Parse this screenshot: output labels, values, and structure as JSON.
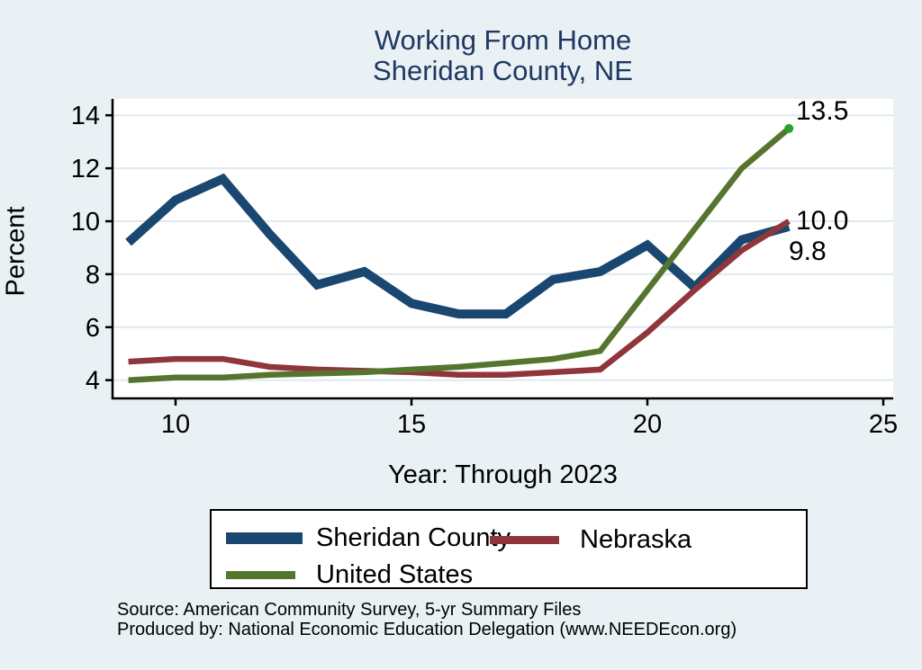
{
  "title": {
    "line1": "Working From Home",
    "line2": "Sheridan County, NE",
    "color": "#1f3863"
  },
  "chart_data": {
    "type": "line",
    "x": [
      9,
      10,
      11,
      12,
      13,
      14,
      15,
      16,
      17,
      18,
      19,
      20,
      21,
      22,
      23
    ],
    "x_note": "years abbreviated (9 = 2009 ... 23 = 2023)",
    "series": [
      {
        "name": "Sheridan County",
        "color": "#1a476f",
        "line_width": 10,
        "values": [
          9.2,
          10.8,
          11.6,
          9.5,
          7.6,
          8.1,
          6.9,
          6.5,
          6.5,
          7.8,
          8.1,
          9.1,
          7.5,
          9.3,
          9.8
        ]
      },
      {
        "name": "Nebraska",
        "color": "#90353b",
        "line_width": 6.5,
        "values": [
          4.7,
          4.8,
          4.8,
          4.5,
          4.4,
          4.35,
          4.3,
          4.2,
          4.2,
          4.3,
          4.4,
          5.8,
          7.4,
          8.9,
          10.0
        ]
      },
      {
        "name": "United States",
        "color": "#55752f",
        "line_width": 6.5,
        "end_marker": true,
        "end_marker_color": "#2ca02c",
        "values": [
          4.0,
          4.1,
          4.1,
          4.2,
          4.25,
          4.3,
          4.4,
          4.5,
          4.65,
          4.8,
          5.1,
          7.4,
          9.7,
          12.0,
          13.5
        ]
      }
    ],
    "xlabel": "Year: Through 2023",
    "ylabel": "Percent",
    "xticks": [
      10,
      15,
      20,
      25
    ],
    "xtick_labels": [
      "10",
      "15",
      "20",
      "25"
    ],
    "yticks": [
      4,
      6,
      8,
      10,
      12,
      14
    ],
    "ytick_labels": [
      "4",
      "6",
      "8",
      "10",
      "12",
      "14"
    ],
    "ylim": [
      3.3,
      14.65
    ],
    "xlim": [
      8.65,
      25.2
    ],
    "grid": "horizontal",
    "plot_background": "#ffffff",
    "grid_color": "#dfeaf0",
    "legend_position": "below",
    "annotations": [
      {
        "text": "13.5",
        "series": "United States"
      },
      {
        "text": "10.0",
        "series": "Nebraska"
      },
      {
        "text": "9.8",
        "series": "Sheridan County"
      }
    ]
  },
  "footer": {
    "line1": "Source: American Community Survey, 5-yr Summary Files",
    "line2": "Produced by: National Economic Education Delegation (www.NEEDEcon.org)"
  }
}
